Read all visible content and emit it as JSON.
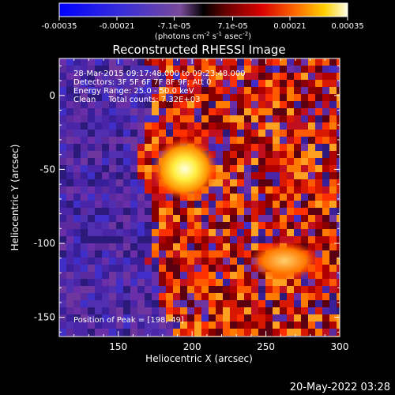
{
  "colorbar": {
    "ticks": [
      "-0.00035",
      "-0.00021",
      "-7.1e-05",
      "7.1e-05",
      "0.00021",
      "0.00035"
    ],
    "tick_values": [
      -0.00035,
      -0.00021,
      -7.1e-05,
      7.1e-05,
      0.00021,
      0.00035
    ],
    "range": [
      -0.00035,
      0.00035
    ],
    "unit_main": "(photons cm",
    "unit_exp1": "-2",
    "unit_mid1": " s",
    "unit_exp2": "-1",
    "unit_mid2": " asec",
    "unit_exp3": "-2",
    "unit_close": ")"
  },
  "chart_data": {
    "type": "heatmap",
    "title": "Reconstructed RHESSI Image",
    "xlabel": "Heliocentric X (arcsec)",
    "ylabel": "Heliocentric Y (arcsec)",
    "xlim": [
      110,
      300
    ],
    "ylim": [
      -163,
      25
    ],
    "x_ticks": [
      150,
      200,
      250,
      300
    ],
    "y_ticks": [
      0,
      -50,
      -100,
      -150
    ],
    "annotations": {
      "time": "28-Mar-2015 09:17:48.000 to 09:23:48.000",
      "detectors": "Detectors: 3F 5F 6F 7F 8F 9F; Att 0",
      "energy": "Energy Range: 25.0 - 50.0 keV",
      "clean": "Clean     Total counts: 7.32E+03",
      "peak": "Position of Peak = [198,-49]"
    },
    "peak": [
      198,
      -49
    ],
    "colors": {
      "negative": "#5a1fa6",
      "positive": "#ff3b00",
      "peak": "#ffffc0"
    }
  },
  "footer": {
    "date": "20-May-2022 03:28"
  }
}
